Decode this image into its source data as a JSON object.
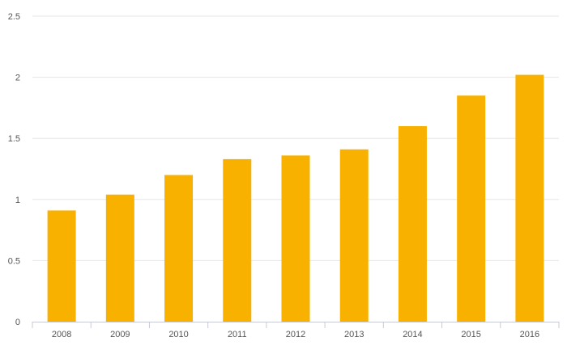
{
  "chart_data": {
    "type": "bar",
    "title": "",
    "xlabel": "",
    "ylabel": "",
    "categories": [
      "2008",
      "2009",
      "2010",
      "2011",
      "2012",
      "2013",
      "2014",
      "2015",
      "2016"
    ],
    "values": [
      0.91,
      1.04,
      1.2,
      1.33,
      1.36,
      1.41,
      1.6,
      1.85,
      2.02
    ],
    "ylim": [
      0,
      2.5
    ],
    "yticks": [
      "0",
      "0.5",
      "1",
      "1.5",
      "2",
      "2.5"
    ],
    "grid": true,
    "legend": "none",
    "colors": {
      "bar": "#F9B100",
      "grid": "#e6e6e6",
      "axis": "#c8cbd6",
      "text": "#555555"
    }
  }
}
